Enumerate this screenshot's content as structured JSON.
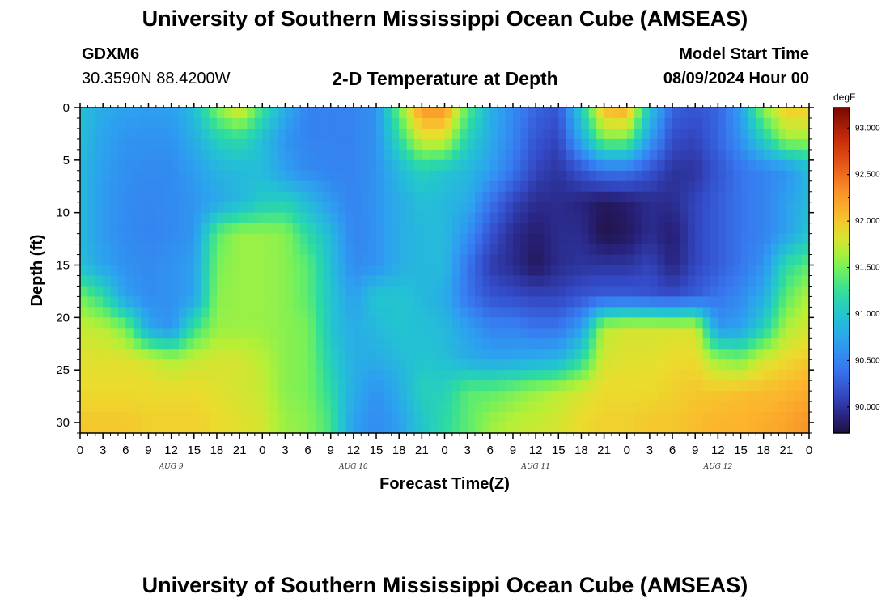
{
  "header": {
    "title": "University of Southern Mississippi Ocean Cube (AMSEAS)",
    "station": "GDXM6",
    "coords": "30.3590N  88.4200W",
    "subtitle": "2-D Temperature at Depth",
    "start_label": "Model Start Time",
    "start_value": "08/09/2024 Hour 00"
  },
  "footer": {
    "title": "University of Southern Mississippi Ocean Cube (AMSEAS)"
  },
  "chart_data": {
    "type": "heatmap",
    "title": "2-D Temperature at Depth",
    "xlabel": "Forecast Time(Z)",
    "ylabel": "Depth (ft)",
    "x_tick_labels": [
      "0",
      "3",
      "6",
      "9",
      "12",
      "15",
      "18",
      "21",
      "0",
      "3",
      "6",
      "9",
      "12",
      "15",
      "18",
      "21",
      "0",
      "3",
      "6",
      "9",
      "12",
      "15",
      "18",
      "21",
      "0",
      "3",
      "6",
      "9",
      "12",
      "15",
      "18",
      "21",
      "0"
    ],
    "x_range_hours": [
      0,
      96
    ],
    "date_labels": [
      {
        "label": "AUG 9",
        "hour": 12
      },
      {
        "label": "AUG 10",
        "hour": 36
      },
      {
        "label": "AUG 11",
        "hour": 60
      },
      {
        "label": "AUG 12",
        "hour": 84
      }
    ],
    "y_ticks": [
      0,
      5,
      10,
      15,
      20,
      25,
      30
    ],
    "y_tick_labels": [
      "0",
      "5",
      "10",
      "15",
      "20",
      "25",
      "30"
    ],
    "y_range": [
      0,
      31
    ],
    "y_inverted": true,
    "colorbar": {
      "unit": "degF",
      "min": 89.72,
      "max": 93.22,
      "ticks": [
        90.0,
        90.5,
        91.0,
        91.5,
        92.0,
        92.5,
        93.0
      ],
      "tick_labels": [
        "90.000",
        "90.500",
        "91.000",
        "91.500",
        "92.000",
        "92.500",
        "93.000"
      ]
    },
    "depths_ft": [
      0,
      3,
      6,
      9,
      12,
      15,
      18,
      21,
      24,
      27,
      30
    ],
    "hours": [
      0,
      3,
      6,
      9,
      12,
      15,
      18,
      21,
      24,
      27,
      30,
      33,
      36,
      39,
      42,
      45,
      48,
      51,
      54,
      57,
      60,
      63,
      66,
      69,
      72,
      75,
      78,
      81,
      84,
      87,
      90,
      93,
      96
    ],
    "values": [
      [
        90.95,
        90.78,
        90.72,
        90.68,
        90.7,
        90.95,
        91.55,
        91.9,
        91.3,
        90.8,
        90.5,
        90.5,
        90.5,
        90.6,
        91.5,
        92.3,
        92.3,
        91.4,
        90.85,
        90.55,
        90.3,
        90.2,
        91.1,
        92.1,
        92.2,
        91.0,
        90.3,
        90.2,
        90.3,
        90.7,
        91.6,
        92.0,
        92.0
      ],
      [
        90.95,
        90.72,
        90.62,
        90.6,
        90.62,
        90.8,
        91.1,
        91.2,
        90.95,
        90.62,
        90.5,
        90.5,
        90.5,
        90.6,
        91.2,
        91.8,
        91.8,
        91.1,
        90.8,
        90.5,
        90.2,
        90.1,
        90.8,
        91.5,
        91.5,
        90.7,
        90.15,
        90.1,
        90.3,
        90.6,
        91.1,
        91.6,
        91.6
      ],
      [
        90.9,
        90.68,
        90.58,
        90.55,
        90.55,
        90.68,
        90.85,
        90.9,
        90.92,
        90.68,
        90.55,
        90.5,
        90.5,
        90.6,
        90.9,
        91.1,
        91.0,
        90.9,
        90.7,
        90.4,
        90.1,
        90.0,
        90.2,
        90.4,
        90.4,
        90.2,
        90.0,
        90.0,
        90.2,
        90.4,
        90.5,
        90.6,
        90.9
      ],
      [
        90.9,
        90.66,
        90.56,
        90.52,
        90.55,
        90.62,
        90.75,
        90.88,
        91.05,
        91.1,
        90.9,
        90.65,
        90.5,
        90.62,
        90.8,
        90.95,
        90.9,
        90.8,
        90.4,
        90.1,
        89.95,
        89.95,
        89.9,
        89.8,
        89.85,
        89.95,
        89.95,
        90.1,
        90.25,
        90.4,
        90.5,
        90.7,
        90.9
      ],
      [
        90.9,
        90.66,
        90.55,
        90.5,
        90.55,
        90.62,
        91.4,
        91.6,
        91.6,
        91.55,
        91.2,
        90.9,
        90.5,
        90.6,
        90.8,
        90.9,
        90.9,
        90.6,
        90.2,
        89.95,
        89.85,
        89.95,
        89.95,
        89.75,
        89.8,
        89.95,
        89.85,
        90.1,
        90.25,
        90.4,
        90.5,
        90.7,
        91.0
      ],
      [
        90.95,
        90.72,
        90.6,
        90.55,
        90.6,
        90.7,
        91.5,
        91.6,
        91.6,
        91.55,
        91.4,
        90.95,
        90.55,
        90.6,
        90.8,
        90.9,
        90.9,
        90.4,
        90.05,
        89.95,
        89.8,
        89.95,
        90.0,
        90.0,
        90.0,
        90.1,
        89.9,
        90.1,
        90.25,
        90.4,
        90.6,
        91.2,
        91.4
      ],
      [
        91.5,
        91.2,
        90.7,
        90.55,
        90.6,
        90.7,
        91.55,
        91.6,
        91.6,
        91.55,
        91.4,
        91.0,
        90.7,
        91.0,
        91.0,
        90.9,
        90.8,
        90.4,
        90.2,
        90.15,
        90.1,
        90.1,
        90.2,
        90.25,
        90.25,
        90.2,
        90.15,
        90.25,
        90.4,
        90.55,
        90.8,
        91.4,
        91.7
      ],
      [
        91.75,
        91.7,
        91.5,
        90.75,
        90.6,
        91.25,
        91.6,
        91.6,
        91.6,
        91.55,
        91.5,
        91.0,
        90.8,
        90.9,
        91.0,
        90.95,
        90.9,
        90.7,
        90.5,
        90.5,
        90.4,
        90.4,
        90.7,
        91.7,
        91.8,
        91.8,
        91.8,
        91.8,
        90.65,
        90.7,
        91.1,
        91.65,
        91.8
      ],
      [
        91.85,
        91.85,
        91.85,
        91.8,
        91.65,
        91.75,
        91.8,
        91.8,
        91.7,
        91.55,
        91.5,
        91.1,
        90.8,
        90.8,
        90.9,
        91.0,
        90.95,
        90.8,
        90.75,
        90.75,
        90.8,
        90.85,
        91.2,
        91.8,
        91.85,
        91.85,
        91.9,
        91.9,
        91.6,
        91.5,
        91.8,
        91.9,
        92.0
      ],
      [
        91.9,
        91.9,
        91.9,
        91.9,
        91.9,
        91.9,
        91.85,
        91.8,
        91.75,
        91.55,
        91.5,
        91.2,
        90.8,
        90.6,
        90.8,
        91.1,
        91.1,
        91.4,
        91.4,
        91.5,
        91.6,
        91.7,
        91.8,
        91.9,
        91.9,
        91.9,
        91.95,
        92.0,
        92.0,
        92.05,
        92.05,
        92.1,
        92.15
      ],
      [
        92.0,
        92.0,
        92.0,
        91.95,
        91.95,
        91.95,
        91.9,
        91.85,
        91.8,
        91.6,
        91.55,
        91.3,
        90.7,
        90.55,
        90.7,
        91.0,
        91.2,
        91.4,
        91.6,
        91.7,
        91.75,
        91.8,
        91.9,
        91.95,
        91.95,
        92.0,
        92.0,
        92.05,
        92.1,
        92.1,
        92.15,
        92.2,
        92.3
      ]
    ]
  }
}
